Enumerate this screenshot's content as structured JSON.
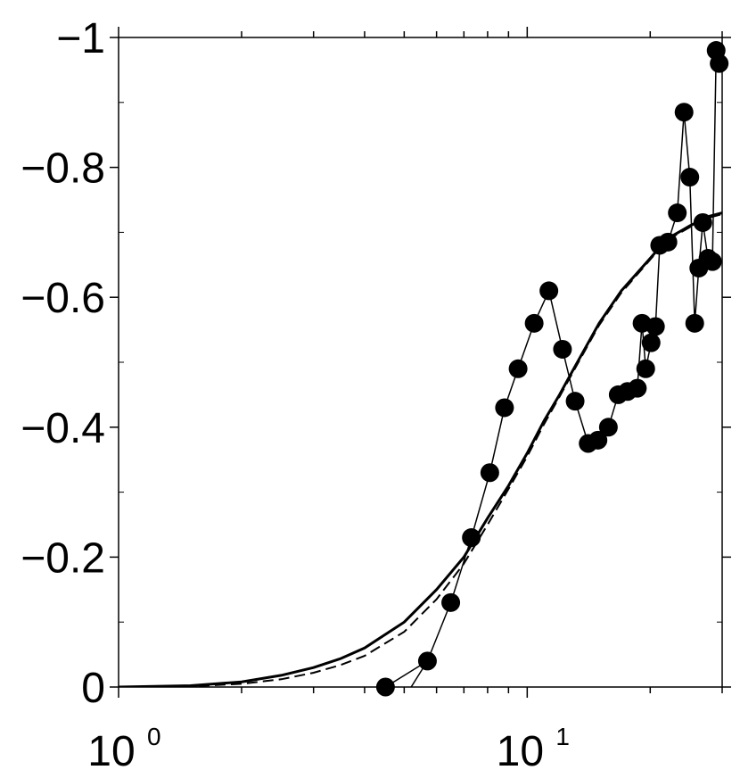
{
  "chart_data": {
    "type": "line",
    "title": "",
    "xlabel": "",
    "ylabel": "",
    "x_scale": "log",
    "y_inverted": true,
    "xlim": [
      1,
      30
    ],
    "ylim": [
      0,
      -1
    ],
    "grid": false,
    "x_ticks": [
      {
        "value": 1,
        "base": "10",
        "exp": "0"
      },
      {
        "value": 10,
        "base": "10",
        "exp": "1"
      }
    ],
    "y_ticks": [
      {
        "value": 0,
        "label": "0"
      },
      {
        "value": -0.2,
        "label": "−0.2"
      },
      {
        "value": -0.4,
        "label": "−0.4"
      },
      {
        "value": -0.6,
        "label": "−0.6"
      },
      {
        "value": -0.8,
        "label": "−0.8"
      },
      {
        "value": -1,
        "label": "−1"
      }
    ],
    "series": [
      {
        "style": "markers-line",
        "x": [
          4.5,
          5.7,
          6.5,
          7.3,
          8.1,
          8.8,
          9.5,
          10.4,
          11.3,
          12.2,
          13.1,
          14.1,
          14.9,
          15.8,
          16.7,
          17.6,
          18.6,
          19.1,
          19.5,
          20.1,
          20.6,
          21.1,
          22.1,
          23.3,
          24.2,
          25.0,
          25.7,
          26.3,
          26.9,
          27.7,
          28.4,
          29.0,
          29.5
        ],
        "y": [
          0.0,
          -0.04,
          -0.13,
          -0.23,
          -0.33,
          -0.43,
          -0.49,
          -0.56,
          -0.61,
          -0.52,
          -0.44,
          -0.375,
          -0.38,
          -0.4,
          -0.45,
          -0.455,
          -0.46,
          -0.56,
          -0.49,
          -0.53,
          -0.555,
          -0.68,
          -0.685,
          -0.73,
          -0.885,
          -0.785,
          -0.56,
          -0.645,
          -0.715,
          -0.66,
          -0.655,
          -0.98,
          -0.96
        ]
      },
      {
        "style": "solid",
        "x": [
          1,
          1.5,
          2,
          2.5,
          3,
          3.5,
          4,
          5,
          6,
          7,
          8,
          9,
          10,
          11,
          12,
          13,
          15,
          17,
          20,
          22,
          25,
          28,
          30
        ],
        "y": [
          0,
          -0.002,
          -0.008,
          -0.018,
          -0.03,
          -0.044,
          -0.06,
          -0.1,
          -0.15,
          -0.2,
          -0.26,
          -0.31,
          -0.36,
          -0.41,
          -0.45,
          -0.49,
          -0.56,
          -0.61,
          -0.66,
          -0.69,
          -0.71,
          -0.725,
          -0.73
        ]
      },
      {
        "style": "dashed",
        "x": [
          1,
          1.5,
          2,
          2.5,
          3,
          3.5,
          4,
          5,
          6,
          7,
          8,
          9,
          10,
          11,
          12,
          13,
          15,
          17,
          20,
          22,
          25,
          28,
          30
        ],
        "y": [
          0,
          -0.001,
          -0.005,
          -0.012,
          -0.022,
          -0.034,
          -0.048,
          -0.085,
          -0.135,
          -0.19,
          -0.25,
          -0.305,
          -0.355,
          -0.405,
          -0.447,
          -0.487,
          -0.557,
          -0.607,
          -0.658,
          -0.688,
          -0.708,
          -0.723,
          -0.728
        ]
      }
    ]
  }
}
